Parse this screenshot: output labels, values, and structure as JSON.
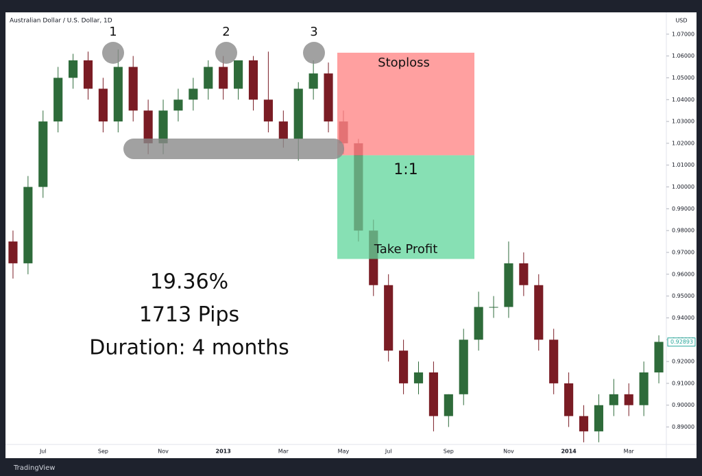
{
  "chart_data": {
    "type": "candlestick",
    "title": "Australian Dollar / U.S. Dollar, 1D",
    "axis_unit": "USD",
    "categories": [
      null,
      null,
      "Jul",
      null,
      null,
      null,
      "Sep",
      null,
      null,
      null,
      "Nov",
      null,
      null,
      null,
      "2013",
      null,
      null,
      null,
      "Mar",
      null,
      null,
      null,
      "May",
      null,
      null,
      "Jul",
      null,
      null,
      null,
      "Sep",
      null,
      null,
      null,
      "Nov",
      null,
      null,
      null,
      "2014",
      null,
      null,
      null,
      "Mar",
      null,
      null
    ],
    "series": [
      {
        "name": "open",
        "values": [
          0.975,
          0.965,
          1.0,
          1.03,
          1.05,
          1.058,
          1.045,
          1.03,
          1.055,
          1.035,
          1.02,
          1.035,
          1.04,
          1.045,
          1.055,
          1.045,
          1.058,
          1.04,
          1.03,
          1.022,
          1.045,
          1.052,
          1.03,
          1.02,
          0.98,
          0.955,
          0.925,
          0.91,
          0.915,
          0.895,
          0.905,
          0.93,
          0.945,
          0.945,
          0.965,
          0.955,
          0.93,
          0.91,
          0.895,
          0.888,
          0.9,
          0.905,
          0.9,
          0.915
        ]
      },
      {
        "name": "high",
        "values": [
          0.98,
          1.005,
          1.035,
          1.055,
          1.061,
          1.062,
          1.05,
          1.063,
          1.06,
          1.04,
          1.04,
          1.045,
          1.05,
          1.058,
          1.06,
          1.05,
          1.06,
          1.062,
          1.035,
          1.048,
          1.058,
          1.057,
          1.035,
          1.022,
          0.985,
          0.96,
          0.93,
          0.92,
          0.92,
          0.905,
          0.935,
          0.952,
          0.95,
          0.975,
          0.97,
          0.96,
          0.935,
          0.915,
          0.9,
          0.905,
          0.912,
          0.91,
          0.92,
          0.932
        ]
      },
      {
        "name": "low",
        "values": [
          0.958,
          0.96,
          0.995,
          1.025,
          1.045,
          1.04,
          1.025,
          1.025,
          1.03,
          1.015,
          1.015,
          1.03,
          1.035,
          1.04,
          1.04,
          1.04,
          1.035,
          1.025,
          1.018,
          1.012,
          1.04,
          1.025,
          1.015,
          0.975,
          0.95,
          0.92,
          0.905,
          0.905,
          0.888,
          0.89,
          0.9,
          0.925,
          0.94,
          0.94,
          0.95,
          0.925,
          0.905,
          0.89,
          0.883,
          0.883,
          0.895,
          0.895,
          0.895,
          0.91
        ]
      },
      {
        "name": "close",
        "values": [
          0.965,
          1.0,
          1.03,
          1.05,
          1.058,
          1.045,
          1.03,
          1.055,
          1.035,
          1.02,
          1.035,
          1.04,
          1.045,
          1.055,
          1.045,
          1.058,
          1.04,
          1.03,
          1.022,
          1.045,
          1.052,
          1.03,
          1.02,
          0.98,
          0.955,
          0.925,
          0.91,
          0.915,
          0.895,
          0.905,
          0.93,
          0.945,
          0.945,
          0.965,
          0.955,
          0.93,
          0.91,
          0.895,
          0.888,
          0.9,
          0.905,
          0.9,
          0.915,
          0.929
        ]
      }
    ],
    "up_color": "#2e6b3a",
    "down_color": "#7a1c24",
    "ylim": [
      0.882,
      1.08
    ],
    "yticks": [
      {
        "value": 0.89,
        "label": "0.89000"
      },
      {
        "value": 0.9,
        "label": "0.90000"
      },
      {
        "value": 0.91,
        "label": "0.91000"
      },
      {
        "value": 0.92,
        "label": "0.92000"
      },
      {
        "value": 0.93,
        "label": "0.93000"
      },
      {
        "value": 0.94,
        "label": "0.94000"
      },
      {
        "value": 0.95,
        "label": "0.95000"
      },
      {
        "value": 0.96,
        "label": "0.96000"
      },
      {
        "value": 0.97,
        "label": "0.97000"
      },
      {
        "value": 0.98,
        "label": "0.98000"
      },
      {
        "value": 0.99,
        "label": "0.99000"
      },
      {
        "value": 1.0,
        "label": "1.00000"
      },
      {
        "value": 1.01,
        "label": "1.01000"
      },
      {
        "value": 1.02,
        "label": "1.02000"
      },
      {
        "value": 1.03,
        "label": "1.03000"
      },
      {
        "value": 1.04,
        "label": "1.04000"
      },
      {
        "value": 1.05,
        "label": "1.05000"
      },
      {
        "value": 1.06,
        "label": "1.06000"
      },
      {
        "value": 1.07,
        "label": "1.07000"
      }
    ],
    "last_price": {
      "value": 0.92893,
      "label": "0.92893"
    },
    "position": {
      "stop": 1.0615,
      "entry": 1.0145,
      "target": 0.967
    },
    "annotations": {
      "peak_1": "1",
      "peak_2": "2",
      "peak_3": "3",
      "stoploss": "Stoploss",
      "ratio": "1:1",
      "take_profit": "Take Profit",
      "percent": "19.36%",
      "pips": "1713 Pips",
      "duration": "Duration: 4 months"
    },
    "brand": "TradingView"
  }
}
